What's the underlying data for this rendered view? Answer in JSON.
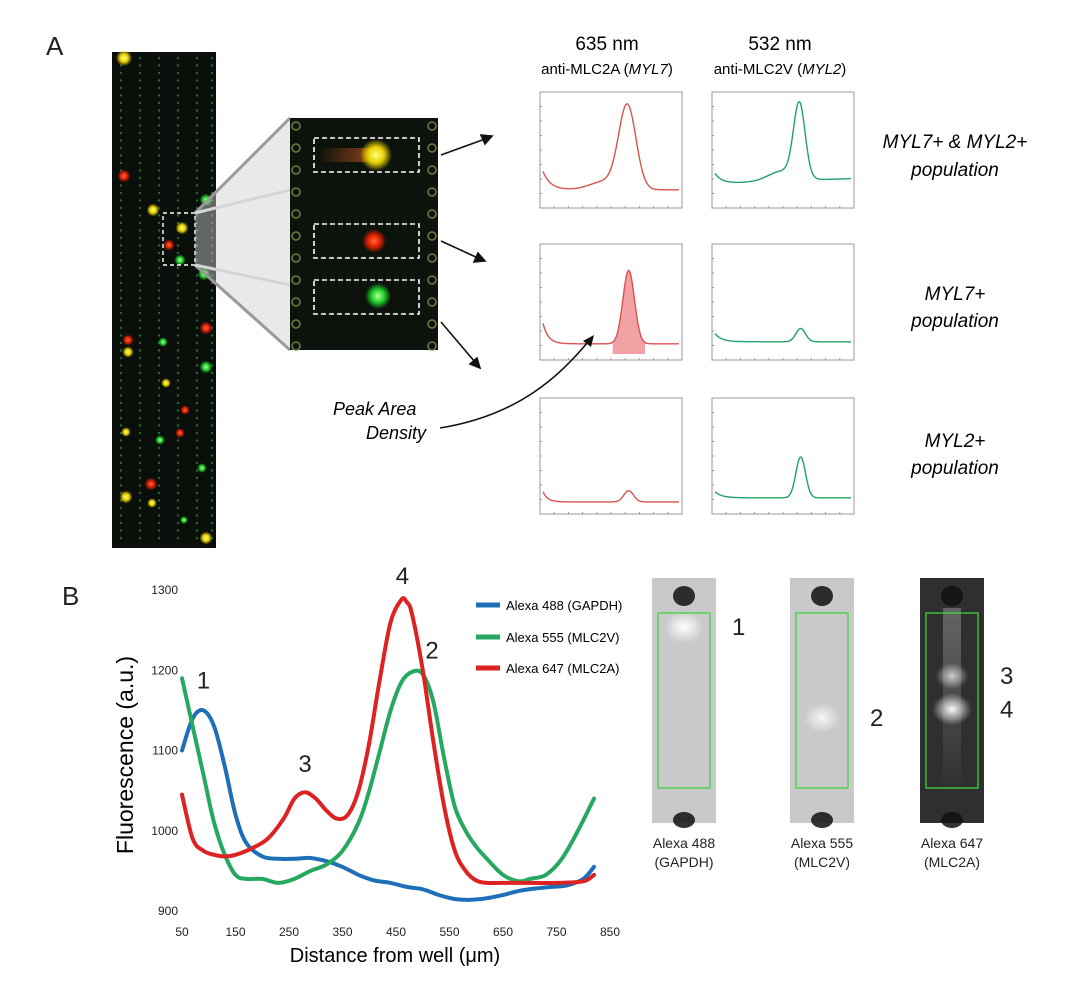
{
  "panel_a": {
    "label": "A",
    "col_635": {
      "wavelength": "635 nm",
      "antibody_prefix": "anti-MLC2A (",
      "gene": "MYL7",
      "antibody_suffix": ")"
    },
    "col_532": {
      "wavelength": "532 nm",
      "antibody_prefix": "anti-MLC2V (",
      "gene": "MYL2",
      "antibody_suffix": ")"
    },
    "rows": [
      {
        "line1_gene1": "MYL7",
        "line1_mid": "+ & ",
        "line1_gene2": "MYL2",
        "line1_tail": "+",
        "line2": "population"
      },
      {
        "line1_gene1": "MYL7",
        "line1_mid": "+",
        "line1_gene2": "",
        "line1_tail": "",
        "line2": "population"
      },
      {
        "line1_gene1": "MYL2",
        "line1_mid": "+",
        "line1_gene2": "",
        "line1_tail": "",
        "line2": "population"
      }
    ],
    "annotation_line1": "Peak Area",
    "annotation_line2": "Density",
    "colors": {
      "red_trace": "#d9534f",
      "green_trace": "#22a266",
      "peak_fill": "#f2a1a4",
      "gel_bg": "#0b0f0b",
      "lane_dot": "#2e8b3e"
    }
  },
  "chart_data": {
    "type": "line",
    "panel_label": "B",
    "xlabel": "Distance from well (μm)",
    "ylabel": "Fluorescence (a.u.)",
    "xlim": [
      50,
      850
    ],
    "ylim": [
      900,
      1300
    ],
    "xticks": [
      50,
      150,
      250,
      350,
      450,
      550,
      650,
      750,
      850
    ],
    "yticks": [
      900,
      1000,
      1100,
      1200,
      1300
    ],
    "grid": false,
    "legend_position": "top-right",
    "series": [
      {
        "name": "Alexa 488 (GAPDH)",
        "color": "#1f6fb8",
        "x": [
          50,
          70,
          90,
          110,
          130,
          150,
          170,
          200,
          230,
          260,
          290,
          320,
          350,
          380,
          410,
          440,
          470,
          500,
          530,
          560,
          590,
          620,
          650,
          680,
          710,
          740,
          770,
          800,
          820
        ],
        "y": [
          1100,
          1140,
          1150,
          1130,
          1080,
          1020,
          985,
          968,
          965,
          965,
          966,
          962,
          955,
          945,
          938,
          935,
          930,
          927,
          920,
          915,
          914,
          916,
          920,
          925,
          928,
          930,
          932,
          940,
          955
        ]
      },
      {
        "name": "Alexa 555 (MLC2V)",
        "color": "#27a861",
        "x": [
          50,
          70,
          90,
          110,
          130,
          150,
          170,
          200,
          230,
          260,
          290,
          320,
          350,
          380,
          400,
          420,
          440,
          460,
          480,
          500,
          520,
          540,
          560,
          580,
          600,
          620,
          650,
          680,
          700,
          730,
          760,
          790,
          820
        ],
        "y": [
          1190,
          1130,
          1070,
          1010,
          970,
          945,
          940,
          940,
          935,
          940,
          950,
          958,
          975,
          1010,
          1050,
          1100,
          1150,
          1185,
          1198,
          1195,
          1160,
          1090,
          1030,
          1000,
          980,
          965,
          945,
          937,
          940,
          945,
          965,
          1000,
          1040
        ]
      },
      {
        "name": "Alexa 647 (MLC2A)",
        "color": "#dd2222",
        "x": [
          50,
          70,
          90,
          110,
          130,
          150,
          180,
          210,
          240,
          260,
          280,
          300,
          320,
          340,
          360,
          380,
          400,
          420,
          440,
          460,
          470,
          480,
          500,
          520,
          540,
          560,
          580,
          600,
          620,
          650,
          700,
          750,
          800,
          820
        ],
        "y": [
          1045,
          990,
          975,
          970,
          968,
          970,
          978,
          990,
          1015,
          1040,
          1048,
          1040,
          1025,
          1015,
          1020,
          1050,
          1110,
          1190,
          1260,
          1288,
          1285,
          1270,
          1200,
          1110,
          1030,
          975,
          950,
          938,
          935,
          935,
          935,
          935,
          937,
          945
        ]
      }
    ],
    "peak_labels": [
      {
        "text": "1",
        "x": 90,
        "y": 1150
      },
      {
        "text": "2",
        "x": 495,
        "y": 1200
      },
      {
        "text": "3",
        "x": 280,
        "y": 1048
      },
      {
        "text": "4",
        "x": 462,
        "y": 1290
      }
    ]
  },
  "gel_images": [
    {
      "dye": "Alexa 488",
      "target": "(GAPDH)",
      "band_labels": [
        "1"
      ],
      "tone": "light",
      "band_positions": [
        0.08
      ],
      "band_strengths": [
        1.0
      ]
    },
    {
      "dye": "Alexa 555",
      "target": "(MLC2V)",
      "band_labels": [
        "2"
      ],
      "tone": "light",
      "band_positions": [
        0.6
      ],
      "band_strengths": [
        0.7
      ]
    },
    {
      "dye": "Alexa 647",
      "target": "(MLC2A)",
      "band_labels": [
        "3",
        "4"
      ],
      "tone": "dark",
      "band_positions": [
        0.36,
        0.55
      ],
      "band_strengths": [
        0.45,
        1.0
      ]
    }
  ]
}
